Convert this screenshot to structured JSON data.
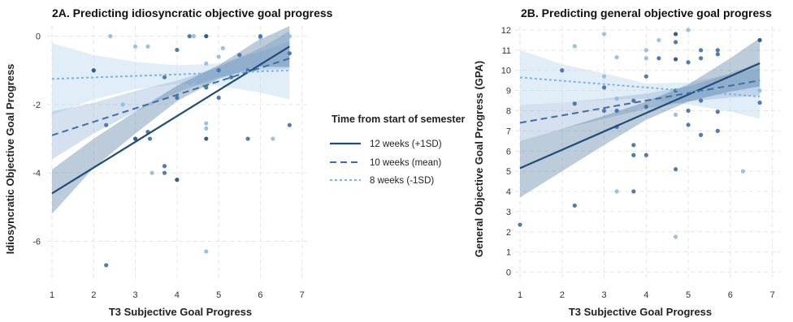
{
  "legend": {
    "title": "Time from start of semester",
    "entries": [
      {
        "label": "12 weeks (+1SD)",
        "color": "#1f4e79",
        "dash": "solid"
      },
      {
        "label": "10 weeks (mean)",
        "color": "#3f6ea6",
        "dash": "dashed"
      },
      {
        "label": "8 weeks (-1SD)",
        "color": "#7fb2dc",
        "dash": "dotted"
      }
    ]
  },
  "chart_data": [
    {
      "type": "scatter",
      "title": "2A. Predicting idiosyncratic objective goal progress",
      "xlabel": "T3 Subjective Goal Progress",
      "ylabel": "Idiosyncratic Objective Goal Progress",
      "xlim": [
        1,
        7.2
      ],
      "ylim": [
        -7.2,
        0.3
      ],
      "xticks": [
        "1",
        "2",
        "3",
        "4",
        "5",
        "6",
        "7"
      ],
      "yticks": [
        "0",
        "-2",
        "-4",
        "-6"
      ],
      "grid": true,
      "series": [
        {
          "name": "12 weeks (+1SD)",
          "line": [
            [
              1,
              -4.6
            ],
            [
              6.7,
              -0.3
            ]
          ],
          "band": [
            [
              1,
              -5.2,
              -3.9
            ],
            [
              2,
              -3.85,
              -3.0
            ],
            [
              3,
              -2.85,
              -2.2
            ],
            [
              4,
              -1.9,
              -1.45
            ],
            [
              5,
              -1.25,
              -0.85
            ],
            [
              5.9,
              -0.9,
              -0.15
            ],
            [
              6.7,
              -0.9,
              0.3
            ]
          ]
        },
        {
          "name": "10 weeks (mean)",
          "line": [
            [
              1,
              -2.9
            ],
            [
              6.7,
              -0.65
            ]
          ],
          "band": [
            [
              1,
              -3.6,
              -2.2
            ],
            [
              2,
              -2.85,
              -1.95
            ],
            [
              3,
              -2.2,
              -1.6
            ],
            [
              4,
              -1.65,
              -1.3
            ],
            [
              5,
              -1.2,
              -0.9
            ],
            [
              6,
              -1.0,
              -0.35
            ],
            [
              6.7,
              -0.95,
              0.15
            ]
          ]
        },
        {
          "name": "8 weeks (-1SD)",
          "line": [
            [
              1,
              -1.25
            ],
            [
              6.7,
              -1.0
            ]
          ],
          "band": [
            [
              1,
              -2.3,
              -0.2
            ],
            [
              2,
              -1.85,
              -0.55
            ],
            [
              3,
              -1.55,
              -0.75
            ],
            [
              4,
              -1.4,
              -0.85
            ],
            [
              5,
              -1.45,
              -0.8
            ],
            [
              6,
              -1.65,
              -0.45
            ],
            [
              6.7,
              -1.85,
              -0.15
            ]
          ]
        }
      ],
      "points": [
        {
          "x": 2.0,
          "y": -1.0,
          "tone": "dark"
        },
        {
          "x": 2.4,
          "y": 0.0,
          "tone": "light"
        },
        {
          "x": 2.3,
          "y": -2.6,
          "tone": "mid"
        },
        {
          "x": 2.7,
          "y": -2.0,
          "tone": "light"
        },
        {
          "x": 3.0,
          "y": -0.3,
          "tone": "light"
        },
        {
          "x": 3.0,
          "y": -3.0,
          "tone": "dark"
        },
        {
          "x": 3.3,
          "y": -0.3,
          "tone": "light"
        },
        {
          "x": 3.3,
          "y": -2.8,
          "tone": "mid"
        },
        {
          "x": 3.35,
          "y": -3.0,
          "tone": "mid"
        },
        {
          "x": 3.7,
          "y": -1.2,
          "tone": "mid"
        },
        {
          "x": 3.7,
          "y": -3.8,
          "tone": "mid"
        },
        {
          "x": 3.7,
          "y": -4.0,
          "tone": "mid"
        },
        {
          "x": 3.4,
          "y": -4.0,
          "tone": "light"
        },
        {
          "x": 4.0,
          "y": -0.4,
          "tone": "mid"
        },
        {
          "x": 4.0,
          "y": -1.8,
          "tone": "mid"
        },
        {
          "x": 4.0,
          "y": -4.2,
          "tone": "dark"
        },
        {
          "x": 4.3,
          "y": 0.0,
          "tone": "mid"
        },
        {
          "x": 4.4,
          "y": -1.4,
          "tone": "light"
        },
        {
          "x": 4.7,
          "y": 0.0,
          "tone": "dark"
        },
        {
          "x": 4.7,
          "y": -0.8,
          "tone": "light"
        },
        {
          "x": 4.7,
          "y": -1.5,
          "tone": "mid"
        },
        {
          "x": 4.7,
          "y": -2.55,
          "tone": "light"
        },
        {
          "x": 4.7,
          "y": -2.7,
          "tone": "light"
        },
        {
          "x": 4.7,
          "y": -3.0,
          "tone": "dark"
        },
        {
          "x": 4.7,
          "y": -6.3,
          "tone": "light"
        },
        {
          "x": 5.0,
          "y": -1.0,
          "tone": "mid"
        },
        {
          "x": 5.0,
          "y": -0.6,
          "tone": "light"
        },
        {
          "x": 5.1,
          "y": -0.35,
          "tone": "light"
        },
        {
          "x": 5.3,
          "y": -1.2,
          "tone": "mid"
        },
        {
          "x": 5.5,
          "y": -0.55,
          "tone": "mid"
        },
        {
          "x": 5.7,
          "y": -1.0,
          "tone": "mid"
        },
        {
          "x": 5.7,
          "y": -3.0,
          "tone": "mid"
        },
        {
          "x": 6.0,
          "y": -0.05,
          "tone": "light"
        },
        {
          "x": 6.0,
          "y": 0.0,
          "tone": "mid"
        },
        {
          "x": 6.3,
          "y": -3.0,
          "tone": "light"
        },
        {
          "x": 6.7,
          "y": 0.0,
          "tone": "light"
        },
        {
          "x": 6.7,
          "y": -0.5,
          "tone": "mid"
        },
        {
          "x": 6.7,
          "y": -2.6,
          "tone": "mid"
        },
        {
          "x": 2.3,
          "y": -6.7,
          "tone": "mid"
        },
        {
          "x": 5.0,
          "y": -1.8,
          "tone": "mid"
        },
        {
          "x": 4.4,
          "y": 0.0,
          "tone": "light"
        }
      ]
    },
    {
      "type": "scatter",
      "title": "2B. Predicting general objective goal progress",
      "xlabel": "T3 Subjective Goal Progress",
      "ylabel": "General Objective Goal Progress (GPA)",
      "xlim": [
        1,
        7.2
      ],
      "ylim": [
        -0.5,
        12.2
      ],
      "xticks": [
        "1",
        "2",
        "3",
        "4",
        "5",
        "6",
        "7"
      ],
      "yticks": [
        "0",
        "1",
        "2",
        "3",
        "4",
        "5",
        "6",
        "7",
        "8",
        "9",
        "10",
        "11",
        "12"
      ],
      "grid": true,
      "series": [
        {
          "name": "12 weeks (+1SD)",
          "line": [
            [
              1,
              5.15
            ],
            [
              6.7,
              10.35
            ]
          ],
          "band": [
            [
              1,
              3.7,
              6.5
            ],
            [
              2,
              5.0,
              7.1
            ],
            [
              3,
              6.3,
              7.75
            ],
            [
              4,
              7.55,
              8.45
            ],
            [
              5,
              8.45,
              9.3
            ],
            [
              6,
              8.95,
              10.6
            ],
            [
              6.7,
              9.2,
              11.6
            ]
          ]
        },
        {
          "name": "10 weeks (mean)",
          "line": [
            [
              1,
              7.4
            ],
            [
              6.7,
              9.5
            ]
          ],
          "band": [
            [
              1,
              6.5,
              8.3
            ],
            [
              2,
              7.1,
              8.4
            ],
            [
              3,
              7.6,
              8.6
            ],
            [
              4,
              8.1,
              8.85
            ],
            [
              5,
              8.45,
              9.2
            ],
            [
              6,
              8.65,
              9.85
            ],
            [
              6.7,
              8.75,
              10.4
            ]
          ]
        },
        {
          "name": "8 weeks (-1SD)",
          "line": [
            [
              1,
              9.65
            ],
            [
              6.7,
              8.7
            ]
          ],
          "band": [
            [
              1,
              8.3,
              11.0
            ],
            [
              2,
              8.4,
              10.3
            ],
            [
              3,
              8.55,
              9.85
            ],
            [
              4,
              8.6,
              9.35
            ],
            [
              5,
              8.3,
              9.4
            ],
            [
              6,
              7.95,
              9.8
            ],
            [
              6.7,
              7.6,
              10.1
            ]
          ]
        }
      ],
      "points": [
        {
          "x": 1.0,
          "y": 2.35,
          "tone": "mid"
        },
        {
          "x": 2.0,
          "y": 10.0,
          "tone": "mid"
        },
        {
          "x": 2.3,
          "y": 11.2,
          "tone": "light"
        },
        {
          "x": 2.3,
          "y": 8.35,
          "tone": "mid"
        },
        {
          "x": 2.3,
          "y": 3.3,
          "tone": "mid"
        },
        {
          "x": 3.0,
          "y": 11.8,
          "tone": "light"
        },
        {
          "x": 3.0,
          "y": 9.7,
          "tone": "light"
        },
        {
          "x": 3.0,
          "y": 9.15,
          "tone": "mid"
        },
        {
          "x": 3.0,
          "y": 8.0,
          "tone": "mid"
        },
        {
          "x": 3.3,
          "y": 10.65,
          "tone": "light"
        },
        {
          "x": 3.3,
          "y": 8.6,
          "tone": "light"
        },
        {
          "x": 3.3,
          "y": 8.0,
          "tone": "mid"
        },
        {
          "x": 3.3,
          "y": 7.2,
          "tone": "mid"
        },
        {
          "x": 3.3,
          "y": 4.0,
          "tone": "light"
        },
        {
          "x": 3.7,
          "y": 8.5,
          "tone": "mid"
        },
        {
          "x": 3.7,
          "y": 6.3,
          "tone": "mid"
        },
        {
          "x": 3.7,
          "y": 5.8,
          "tone": "mid"
        },
        {
          "x": 3.7,
          "y": 4.0,
          "tone": "mid"
        },
        {
          "x": 4.0,
          "y": 11.0,
          "tone": "light"
        },
        {
          "x": 4.0,
          "y": 10.6,
          "tone": "light"
        },
        {
          "x": 4.0,
          "y": 9.7,
          "tone": "mid"
        },
        {
          "x": 4.0,
          "y": 8.2,
          "tone": "mid"
        },
        {
          "x": 4.0,
          "y": 5.8,
          "tone": "mid"
        },
        {
          "x": 4.3,
          "y": 10.6,
          "tone": "mid"
        },
        {
          "x": 4.3,
          "y": 11.5,
          "tone": "light"
        },
        {
          "x": 4.7,
          "y": 11.8,
          "tone": "dark"
        },
        {
          "x": 4.7,
          "y": 11.4,
          "tone": "mid"
        },
        {
          "x": 4.7,
          "y": 10.55,
          "tone": "dark"
        },
        {
          "x": 4.7,
          "y": 9.0,
          "tone": "mid"
        },
        {
          "x": 4.7,
          "y": 7.8,
          "tone": "light"
        },
        {
          "x": 4.7,
          "y": 5.1,
          "tone": "mid"
        },
        {
          "x": 4.7,
          "y": 1.75,
          "tone": "light"
        },
        {
          "x": 5.0,
          "y": 12.0,
          "tone": "light"
        },
        {
          "x": 5.0,
          "y": 10.4,
          "tone": "mid"
        },
        {
          "x": 5.0,
          "y": 8.0,
          "tone": "mid"
        },
        {
          "x": 5.0,
          "y": 7.3,
          "tone": "mid"
        },
        {
          "x": 5.3,
          "y": 11.0,
          "tone": "mid"
        },
        {
          "x": 5.3,
          "y": 10.6,
          "tone": "mid"
        },
        {
          "x": 5.3,
          "y": 8.5,
          "tone": "mid"
        },
        {
          "x": 5.3,
          "y": 6.8,
          "tone": "mid"
        },
        {
          "x": 5.7,
          "y": 11.0,
          "tone": "mid"
        },
        {
          "x": 5.7,
          "y": 10.8,
          "tone": "mid"
        },
        {
          "x": 5.7,
          "y": 9.1,
          "tone": "light"
        },
        {
          "x": 5.7,
          "y": 7.95,
          "tone": "mid"
        },
        {
          "x": 5.7,
          "y": 7.0,
          "tone": "mid"
        },
        {
          "x": 6.3,
          "y": 5.0,
          "tone": "light"
        },
        {
          "x": 6.7,
          "y": 11.5,
          "tone": "dark"
        },
        {
          "x": 6.7,
          "y": 9.0,
          "tone": "light"
        },
        {
          "x": 6.7,
          "y": 8.4,
          "tone": "mid"
        }
      ]
    }
  ],
  "colors": {
    "dark": "#1f4e79",
    "mid": "#3f6ea6",
    "light": "#8fbbe0",
    "band_dark": "#2f5f8f",
    "band_mid": "#6c94c4",
    "band_light": "#b8d6ef"
  }
}
